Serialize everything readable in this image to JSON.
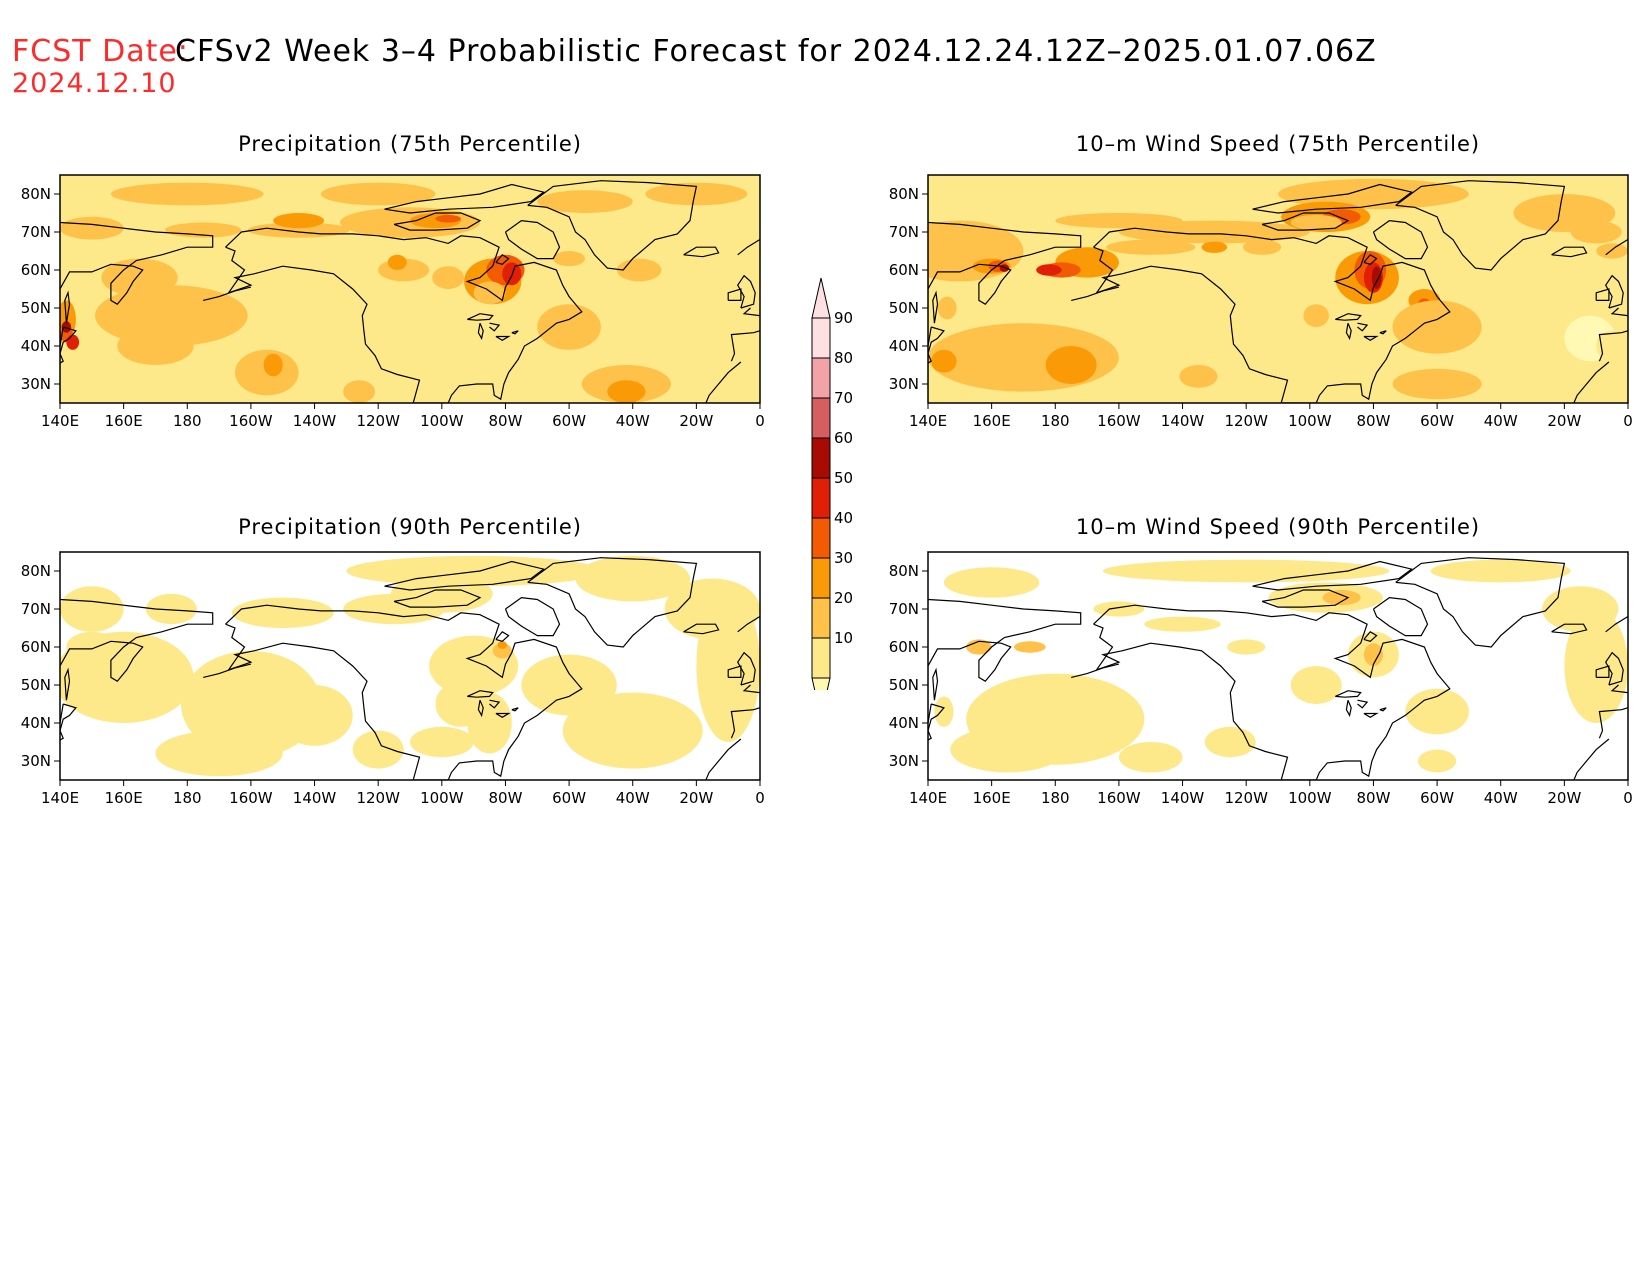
{
  "header": {
    "fcst_label": "FCST Date:",
    "fcst_date": "2024.12.10",
    "title": "CFSv2 Week 3–4 Probabilistic Forecast for 2024.12.24.12Z–2025.01.07.06Z"
  },
  "panels": [
    {
      "id": "p1",
      "title": "Precipitation (75th Percentile)",
      "variable": "precipitation",
      "percentile": 75
    },
    {
      "id": "p2",
      "title": "10–m Wind Speed (75th Percentile)",
      "variable": "wind",
      "percentile": 75
    },
    {
      "id": "p3",
      "title": "Precipitation (90th Percentile)",
      "variable": "precipitation",
      "percentile": 90
    },
    {
      "id": "p4",
      "title": "10–m Wind Speed (90th Percentile)",
      "variable": "wind",
      "percentile": 90
    }
  ],
  "axes": {
    "lon_ticks": [
      "140E",
      "160E",
      "180",
      "160W",
      "140W",
      "120W",
      "100W",
      "80W",
      "60W",
      "40W",
      "20W",
      "0"
    ],
    "lat_ticks": [
      "80N",
      "70N",
      "60N",
      "50N",
      "40N",
      "30N"
    ],
    "lon_range": [
      140,
      360
    ],
    "lat_range": [
      25,
      85
    ]
  },
  "colorbar": {
    "levels": [
      "10",
      "20",
      "30",
      "40",
      "50",
      "60",
      "70",
      "80",
      "90"
    ],
    "colors": [
      "#fff9b4",
      "#fde98a",
      "#fec14a",
      "#fa9a06",
      "#f25b04",
      "#e01f06",
      "#a80b04",
      "#d55e60",
      "#f2a3a8",
      "#fde0e2"
    ]
  },
  "colors": {
    "background": "#ffffff",
    "coastline": "#000000",
    "header_red": "#ff2a2a"
  }
}
